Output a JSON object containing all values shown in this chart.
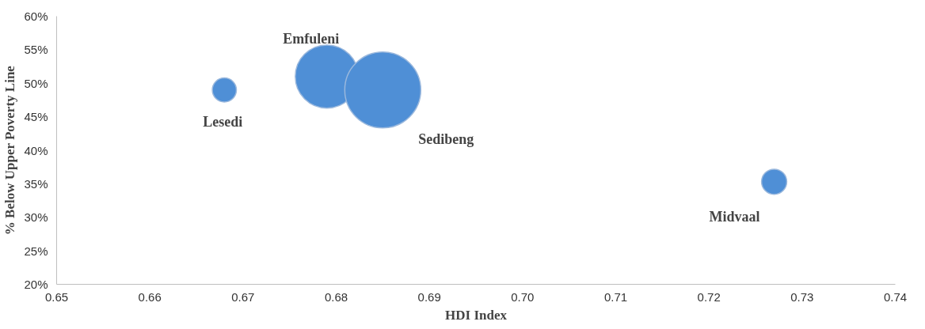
{
  "chart_data": {
    "type": "bubble",
    "xlabel": "HDI Index",
    "ylabel": "% Below Upper Poverty Line",
    "xlim": [
      0.65,
      0.74
    ],
    "xticks": [
      0.65,
      0.66,
      0.67,
      0.68,
      0.69,
      {
        "value": 0.7,
        "label": "0.70"
      },
      0.71,
      0.72,
      0.73,
      {
        "value": 0.74,
        "label": "0.74"
      }
    ],
    "ylim": [
      20,
      60
    ],
    "yticks": [
      {
        "value": 20,
        "label": "20%"
      },
      {
        "value": 25,
        "label": "25%"
      },
      {
        "value": 30,
        "label": "30%"
      },
      {
        "value": 35,
        "label": "35%"
      },
      {
        "value": 40,
        "label": "40%"
      },
      {
        "value": 45,
        "label": "45%"
      },
      {
        "value": 50,
        "label": "50%"
      },
      {
        "value": 55,
        "label": "55%"
      },
      {
        "value": 60,
        "label": "60%"
      }
    ],
    "grid": false,
    "legend": false,
    "series": [
      {
        "name": "Lesedi",
        "color": "#4f8fd6",
        "x": [
          0.668
        ],
        "values": [
          49
        ],
        "sizes": [
          0.1
        ]
      },
      {
        "name": "Emfuleni",
        "color": "#4f8fd6",
        "x": [
          0.679
        ],
        "values": [
          51
        ],
        "sizes": [
          0.69
        ]
      },
      {
        "name": "Sedibeng",
        "color": "#4f8fd6",
        "x": [
          0.685
        ],
        "values": [
          49
        ],
        "sizes": [
          1
        ]
      },
      {
        "name": "Midvaal",
        "color": "#4f8fd6",
        "x": [
          0.727
        ],
        "values": [
          35.3
        ],
        "sizes": [
          0.11
        ]
      }
    ]
  }
}
